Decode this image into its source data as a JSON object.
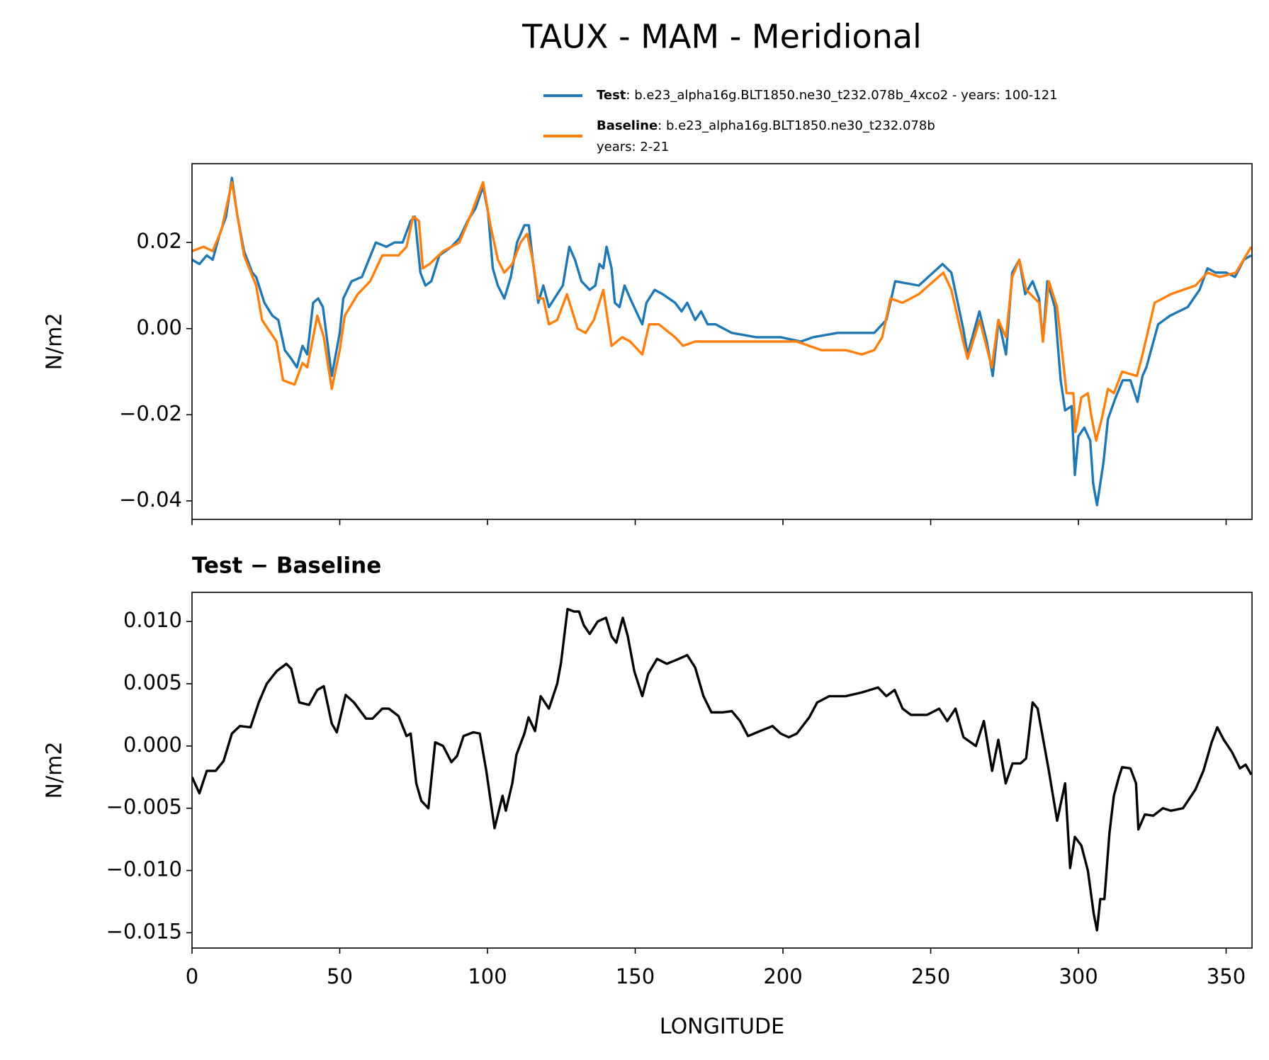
{
  "chart_data": [
    {
      "type": "line",
      "title": "TAUX - MAM - Meridional",
      "ylabel": "N/m2",
      "xlim": [
        0,
        358.75
      ],
      "ylim": [
        -0.0443,
        0.0383
      ],
      "yticks": [
        {
          "value": -0.04,
          "label": "−0.04"
        },
        {
          "value": -0.02,
          "label": "−0.02"
        },
        {
          "value": 0,
          "label": "0.00"
        },
        0.02
      ],
      "series": [
        {
          "name": "Test",
          "label": [
            ": b.e23_alpha16g.BLT1850.ne30_t232.078b_4xco2 - years: 100-121"
          ],
          "color": "#1f77b4",
          "x": [
            0,
            2.5,
            5,
            7,
            9.4,
            11.5,
            13.5,
            15.4,
            17.6,
            20.4,
            21.7,
            24.5,
            27.2,
            29.2,
            31.4,
            33.6,
            35.5,
            37.4,
            39,
            41,
            42.7,
            44.3,
            47.3,
            50,
            51.2,
            54,
            57.5,
            62.2,
            65.8,
            68.5,
            71.3,
            74,
            75.4,
            77.3,
            79,
            81,
            83.7,
            87.8,
            90.5,
            93.3,
            96,
            98.5,
            100.2,
            101.8,
            103.5,
            105.7,
            107.9,
            110,
            112.5,
            114,
            115.3,
            117.2,
            118.9,
            120.8,
            123.6,
            125.5,
            127.7,
            129.6,
            131.8,
            134.6,
            136.5,
            137.9,
            139.2,
            140.3,
            142,
            143.1,
            144.7,
            146.4,
            148.3,
            151,
            152.4,
            153.8,
            156.6,
            159.3,
            163.5,
            165.7,
            167.6,
            170.3,
            172.3,
            174.5,
            177.2,
            182.7,
            191,
            199.2,
            206.1,
            210.2,
            218.5,
            226.7,
            230.9,
            233.6,
            235,
            238,
            246,
            254,
            257,
            261,
            262.5,
            266.5,
            269,
            271,
            273,
            275.5,
            277.6,
            280,
            282,
            284.5,
            286.7,
            288,
            289.5,
            292,
            294,
            295.5,
            297.7,
            298.8,
            300,
            302,
            304,
            305,
            306.3,
            308.5,
            310,
            312.6,
            315,
            317.6,
            320,
            321.7,
            323,
            327,
            331,
            337,
            341,
            343.7,
            346.4,
            350,
            353,
            356,
            358.5
          ],
          "values": [
            0.016,
            0.015,
            0.017,
            0.016,
            0.022,
            0.026,
            0.035,
            0.026,
            0.018,
            0.013,
            0.012,
            0.006,
            0.003,
            0.002,
            -0.005,
            -0.007,
            -0.009,
            -0.004,
            -0.006,
            0.006,
            0.007,
            0.005,
            -0.011,
            -0.001,
            0.007,
            0.011,
            0.012,
            0.02,
            0.019,
            0.02,
            0.02,
            0.025,
            0.026,
            0.013,
            0.01,
            0.011,
            0.017,
            0.019,
            0.021,
            0.025,
            0.028,
            0.033,
            0.027,
            0.014,
            0.01,
            0.007,
            0.012,
            0.02,
            0.024,
            0.024,
            0.016,
            0.006,
            0.01,
            0.005,
            0.008,
            0.01,
            0.019,
            0.016,
            0.011,
            0.009,
            0.01,
            0.015,
            0.014,
            0.019,
            0.014,
            0.006,
            0.005,
            0.01,
            0.007,
            0.003,
            0.001,
            0.006,
            0.009,
            0.008,
            0.006,
            0.004,
            0.006,
            0.002,
            0.004,
            0.001,
            0.001,
            -0.001,
            -0.002,
            -0.002,
            -0.003,
            -0.002,
            -0.001,
            -0.001,
            -0.001,
            0.001,
            0.002,
            0.011,
            0.01,
            0.015,
            0.013,
            0,
            -0.006,
            0.004,
            -0.003,
            -0.011,
            0.002,
            -0.006,
            0.013,
            0.016,
            0.008,
            0.011,
            0.007,
            -0.003,
            0.011,
            0.005,
            -0.012,
            -0.019,
            -0.018,
            -0.034,
            -0.025,
            -0.023,
            -0.026,
            -0.036,
            -0.041,
            -0.031,
            -0.021,
            -0.016,
            -0.012,
            -0.012,
            -0.017,
            -0.011,
            -0.009,
            0.001,
            0.003,
            0.005,
            0.009,
            0.014,
            0.013,
            0.013,
            0.012,
            0.016,
            0.017
          ]
        },
        {
          "name": "Baseline",
          "label": [
            ": b.e23_alpha16g.BLT1850.ne30_t232.078b",
            "years: 2-21"
          ],
          "color": "#ff7f0e",
          "x": [
            0,
            3.9,
            7,
            10,
            13.5,
            17.6,
            21.7,
            23.7,
            28.6,
            30.8,
            34.7,
            37.4,
            39,
            42.4,
            44.6,
            47.3,
            50,
            51.7,
            56.1,
            60.3,
            64.4,
            69.9,
            72.6,
            74.8,
            76.8,
            78.1,
            80.4,
            85,
            90.5,
            94.7,
            98.5,
            101,
            103.5,
            105.7,
            108.4,
            111.2,
            113.4,
            115.3,
            117.2,
            118.9,
            120.8,
            123.6,
            126.9,
            130.5,
            133.2,
            136,
            139.2,
            142,
            145.6,
            148.3,
            152.4,
            154.7,
            158,
            163.5,
            166.2,
            170.3,
            174.5,
            180,
            188.2,
            196.5,
            204.7,
            213,
            221.2,
            226.7,
            230.9,
            233.6,
            236.4,
            240.5,
            246,
            254.3,
            257,
            261,
            262.5,
            266.6,
            270.7,
            272.9,
            275.5,
            277.6,
            280,
            282.3,
            286.7,
            288,
            290,
            292.8,
            296,
            298.3,
            299,
            301,
            303.2,
            304.3,
            306,
            307.9,
            310,
            312,
            314.8,
            319.8,
            321.7,
            325.8,
            331.3,
            339.6,
            343.7,
            347.8,
            353.3,
            358.5
          ],
          "values": [
            0.018,
            0.019,
            0.018,
            0.023,
            0.034,
            0.017,
            0.01,
            0.002,
            -0.003,
            -0.012,
            -0.013,
            -0.008,
            -0.009,
            0.003,
            -0.002,
            -0.014,
            -0.005,
            0.003,
            0.008,
            0.011,
            0.017,
            0.017,
            0.019,
            0.026,
            0.025,
            0.014,
            0.015,
            0.018,
            0.02,
            0.027,
            0.034,
            0.024,
            0.016,
            0.013,
            0.015,
            0.02,
            0.022,
            0.016,
            0.007,
            0.007,
            0.001,
            0.002,
            0.008,
            0,
            -0.001,
            0.002,
            0.009,
            -0.004,
            -0.002,
            -0.003,
            -0.006,
            0.001,
            0.001,
            -0.002,
            -0.004,
            -0.003,
            -0.003,
            -0.003,
            -0.003,
            -0.003,
            -0.003,
            -0.005,
            -0.005,
            -0.006,
            -0.005,
            -0.002,
            0.007,
            0.006,
            0.008,
            0.013,
            0.009,
            -0.003,
            -0.007,
            0.002,
            -0.009,
            0.002,
            -0.002,
            0.012,
            0.016,
            0.009,
            0.006,
            -0.003,
            0.011,
            0.005,
            -0.015,
            -0.015,
            -0.024,
            -0.016,
            -0.015,
            -0.02,
            -0.026,
            -0.021,
            -0.014,
            -0.015,
            -0.01,
            -0.011,
            -0.006,
            0.006,
            0.008,
            0.01,
            0.013,
            0.012,
            0.013,
            0.019
          ]
        }
      ]
    },
    {
      "type": "line",
      "title": "Test − Baseline",
      "ylabel": "N/m2",
      "xlabel": "LONGITUDE",
      "xlim": [
        0,
        358.75
      ],
      "xticks": [
        0,
        50,
        100,
        150,
        200,
        250,
        300,
        350
      ],
      "ylim": [
        -0.01623,
        0.01234
      ],
      "yticks": [
        {
          "value": -0.015,
          "label": "−0.015"
        },
        {
          "value": -0.01,
          "label": "−0.010"
        },
        {
          "value": -0.005,
          "label": "−0.005"
        },
        {
          "value": 0,
          "label": "0.000"
        },
        0.005,
        {
          "value": 0.01,
          "label": "0.010"
        }
      ],
      "series": [
        {
          "color": "#000000",
          "x": [
            0,
            2.5,
            5,
            8,
            10.7,
            13.5,
            16.2,
            19.8,
            22.6,
            25.3,
            28.6,
            31.9,
            33.6,
            36.3,
            39.6,
            42.4,
            44.6,
            47.3,
            49,
            52,
            54.8,
            58.9,
            61.1,
            64.4,
            66.6,
            69.9,
            72.6,
            74,
            75.9,
            77.6,
            80,
            82.3,
            85,
            87.8,
            89.7,
            91.9,
            95.2,
            97.4,
            99.6,
            102.4,
            105.1,
            106.2,
            108.4,
            109.8,
            112.5,
            113.9,
            116.1,
            118,
            120.8,
            123.6,
            124.9,
            127.1,
            129.3,
            131,
            132.6,
            134.6,
            137.3,
            140.1,
            142,
            143.6,
            145.8,
            147.5,
            149.7,
            152.4,
            154.4,
            157.4,
            160.7,
            164.8,
            167.6,
            170.3,
            173.1,
            175.8,
            179.4,
            182.7,
            185.5,
            188.2,
            192.3,
            196.5,
            199.2,
            202,
            204.7,
            208.9,
            211.6,
            215.7,
            221.2,
            226.7,
            232.2,
            235,
            237.8,
            240.5,
            243.3,
            248.8,
            252.9,
            255.6,
            258.4,
            261.1,
            265.3,
            268,
            270.8,
            272.9,
            275.4,
            277.7,
            280.4,
            282.3,
            284.5,
            286.2,
            290,
            292.8,
            295.5,
            297.2,
            298.8,
            301,
            303.2,
            305.2,
            306.3,
            307.4,
            308.8,
            310.5,
            312,
            313.7,
            314.8,
            317.6,
            319.5,
            320.3,
            322.5,
            325.3,
            328.6,
            331.3,
            335.4,
            339.6,
            342.3,
            345.1,
            347,
            349.2,
            352,
            354.7,
            356.6,
            358.5
          ],
          "values": [
            -0.0025,
            -0.0038,
            -0.002,
            -0.002,
            -0.0012,
            0.001,
            0.0016,
            0.0015,
            0.0035,
            0.005,
            0.006,
            0.0066,
            0.0062,
            0.0035,
            0.0033,
            0.0045,
            0.0048,
            0.0018,
            0.0011,
            0.0041,
            0.0035,
            0.0022,
            0.0022,
            0.003,
            0.003,
            0.0024,
            0.0008,
            0.001,
            -0.003,
            -0.0044,
            -0.005,
            0.0003,
            0,
            -0.0013,
            -0.0008,
            0.0008,
            0.0011,
            0.001,
            -0.002,
            -0.0066,
            -0.004,
            -0.0052,
            -0.003,
            -0.0007,
            0.001,
            0.0023,
            0.0012,
            0.004,
            0.003,
            0.005,
            0.0067,
            0.011,
            0.0108,
            0.0108,
            0.0097,
            0.009,
            0.01,
            0.0103,
            0.0088,
            0.0083,
            0.0103,
            0.0088,
            0.006,
            0.004,
            0.0058,
            0.007,
            0.0066,
            0.007,
            0.0073,
            0.0063,
            0.004,
            0.0027,
            0.0027,
            0.0028,
            0.002,
            0.0008,
            0.0012,
            0.0016,
            0.001,
            0.0007,
            0.001,
            0.0023,
            0.0035,
            0.004,
            0.004,
            0.0043,
            0.0047,
            0.004,
            0.0045,
            0.003,
            0.0025,
            0.0025,
            0.003,
            0.002,
            0.003,
            0.0007,
            0,
            0.002,
            -0.002,
            0.0005,
            -0.003,
            -0.0014,
            -0.0014,
            -0.001,
            0.0035,
            0.003,
            -0.002,
            -0.006,
            -0.003,
            -0.0098,
            -0.0073,
            -0.008,
            -0.01,
            -0.0135,
            -0.0148,
            -0.0123,
            -0.0123,
            -0.007,
            -0.004,
            -0.0025,
            -0.0017,
            -0.0018,
            -0.003,
            -0.0067,
            -0.0055,
            -0.0056,
            -0.005,
            -0.0052,
            -0.005,
            -0.0035,
            -0.002,
            0.0003,
            0.0015,
            0.0005,
            -0.0005,
            -0.0018,
            -0.0015,
            -0.0023
          ]
        }
      ]
    }
  ]
}
